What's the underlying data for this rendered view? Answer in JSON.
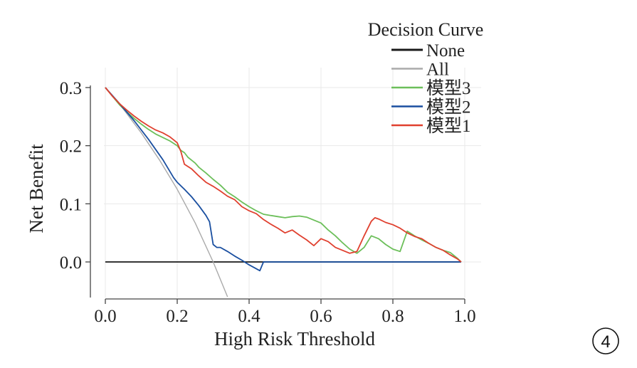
{
  "chart_data": {
    "type": "line",
    "title": "",
    "xlabel": "High Risk Threshold",
    "ylabel": "Net Benefit",
    "xlim": [
      0,
      1
    ],
    "ylim": [
      -0.06,
      0.32
    ],
    "x_ticks": [
      "0.0",
      "0.2",
      "0.4",
      "0.6",
      "0.8",
      "1.0"
    ],
    "y_ticks": [
      "0.0",
      "0.1",
      "0.2",
      "0.3"
    ],
    "x_tick_values": [
      0,
      0.2,
      0.4,
      0.6,
      0.8,
      1.0
    ],
    "y_tick_values": [
      0,
      0.1,
      0.2,
      0.3
    ],
    "grid": true,
    "legend": {
      "title": "Decision Curve",
      "placement": "top-right",
      "entries": [
        "None",
        "All",
        "模型3",
        "模型2",
        "模型1"
      ]
    },
    "series": [
      {
        "name": "None",
        "color": "#1a1a1a",
        "x": [
          0,
          0.99
        ],
        "y": [
          0,
          0
        ]
      },
      {
        "name": "All",
        "color": "#aaaaaa",
        "x": [
          0,
          0.05,
          0.1,
          0.15,
          0.2,
          0.25,
          0.3,
          0.34
        ],
        "y": [
          0.3,
          0.263,
          0.222,
          0.176,
          0.125,
          0.067,
          0.0,
          -0.06
        ]
      },
      {
        "name": "模型3",
        "color": "#6cbf5a",
        "x": [
          0,
          0.02,
          0.04,
          0.06,
          0.08,
          0.1,
          0.12,
          0.14,
          0.16,
          0.18,
          0.2,
          0.21,
          0.22,
          0.23,
          0.24,
          0.25,
          0.26,
          0.28,
          0.3,
          0.32,
          0.34,
          0.36,
          0.38,
          0.4,
          0.42,
          0.44,
          0.46,
          0.48,
          0.5,
          0.52,
          0.54,
          0.56,
          0.58,
          0.6,
          0.62,
          0.64,
          0.66,
          0.68,
          0.7,
          0.72,
          0.74,
          0.76,
          0.78,
          0.8,
          0.82,
          0.84,
          0.86,
          0.88,
          0.9,
          0.92,
          0.94,
          0.96,
          0.98,
          0.99
        ],
        "y": [
          0.3,
          0.285,
          0.27,
          0.258,
          0.247,
          0.237,
          0.228,
          0.22,
          0.214,
          0.208,
          0.2,
          0.192,
          0.188,
          0.18,
          0.175,
          0.17,
          0.163,
          0.153,
          0.142,
          0.132,
          0.12,
          0.112,
          0.103,
          0.095,
          0.088,
          0.082,
          0.08,
          0.078,
          0.076,
          0.078,
          0.079,
          0.077,
          0.072,
          0.067,
          0.055,
          0.045,
          0.033,
          0.022,
          0.015,
          0.025,
          0.045,
          0.04,
          0.03,
          0.022,
          0.018,
          0.053,
          0.045,
          0.038,
          0.032,
          0.025,
          0.02,
          0.016,
          0.006,
          0.0
        ]
      },
      {
        "name": "模型2",
        "color": "#1a4fa0",
        "x": [
          0,
          0.04,
          0.08,
          0.12,
          0.16,
          0.19,
          0.2,
          0.22,
          0.24,
          0.26,
          0.28,
          0.29,
          0.3,
          0.31,
          0.32,
          0.34,
          0.36,
          0.38,
          0.4,
          0.43,
          0.44,
          0.46,
          0.5,
          0.6,
          0.7,
          0.8,
          0.9,
          0.99
        ],
        "y": [
          0.3,
          0.272,
          0.243,
          0.211,
          0.176,
          0.145,
          0.137,
          0.125,
          0.112,
          0.097,
          0.08,
          0.069,
          0.03,
          0.025,
          0.025,
          0.018,
          0.01,
          0.003,
          -0.005,
          -0.015,
          0.0,
          0.0,
          0.0,
          0.0,
          0.0,
          0.0,
          0.0,
          0.0
        ]
      },
      {
        "name": "模型1",
        "color": "#e0402f",
        "x": [
          0,
          0.02,
          0.04,
          0.06,
          0.08,
          0.1,
          0.12,
          0.14,
          0.16,
          0.18,
          0.2,
          0.21,
          0.22,
          0.24,
          0.26,
          0.28,
          0.3,
          0.32,
          0.34,
          0.36,
          0.38,
          0.4,
          0.42,
          0.44,
          0.46,
          0.48,
          0.5,
          0.52,
          0.54,
          0.56,
          0.58,
          0.6,
          0.62,
          0.64,
          0.66,
          0.68,
          0.7,
          0.72,
          0.74,
          0.75,
          0.76,
          0.78,
          0.8,
          0.82,
          0.84,
          0.86,
          0.88,
          0.9,
          0.92,
          0.94,
          0.96,
          0.98,
          0.99
        ],
        "y": [
          0.3,
          0.285,
          0.272,
          0.261,
          0.251,
          0.242,
          0.234,
          0.227,
          0.222,
          0.215,
          0.205,
          0.19,
          0.168,
          0.16,
          0.148,
          0.137,
          0.13,
          0.122,
          0.113,
          0.107,
          0.095,
          0.088,
          0.083,
          0.073,
          0.065,
          0.058,
          0.05,
          0.055,
          0.046,
          0.038,
          0.028,
          0.04,
          0.035,
          0.025,
          0.02,
          0.015,
          0.018,
          0.045,
          0.07,
          0.076,
          0.074,
          0.068,
          0.064,
          0.058,
          0.05,
          0.044,
          0.04,
          0.032,
          0.025,
          0.02,
          0.012,
          0.005,
          0.0
        ]
      }
    ]
  },
  "badge": {
    "label": "4"
  }
}
